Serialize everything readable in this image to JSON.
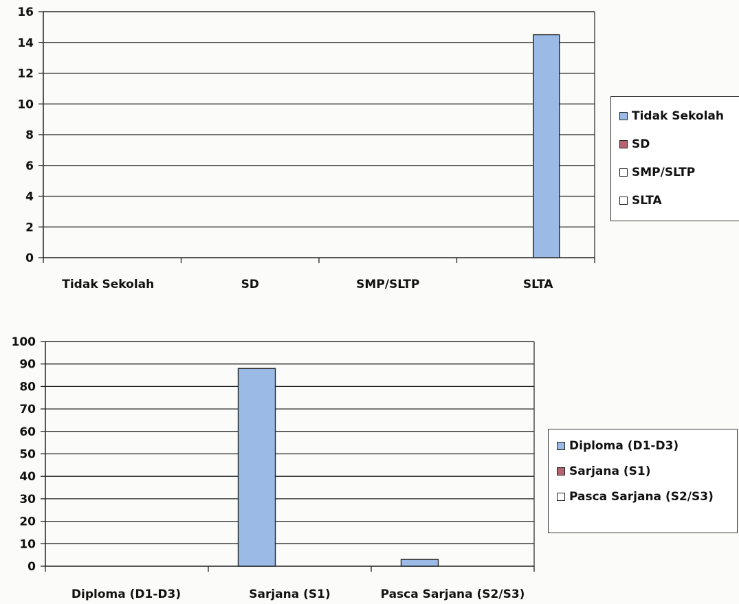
{
  "chart_data": [
    {
      "type": "bar",
      "categories": [
        "Tidak Sekolah",
        "SD",
        "SMP/SLTP",
        "SLTA"
      ],
      "series": [
        {
          "name": "Tidak Sekolah",
          "color": "#9bbbe6",
          "values": [
            0,
            0,
            0,
            14.5
          ]
        }
      ],
      "legend": [
        "Tidak Sekolah",
        "SD",
        "SMP/SLTP",
        "SLTA"
      ],
      "legend_colors": [
        "#9bbbe6",
        "#b5636f",
        "#ffffff",
        "#ffffff"
      ],
      "yticks": [
        0,
        2,
        4,
        6,
        8,
        10,
        12,
        14,
        16
      ],
      "ylim": [
        0,
        16
      ],
      "grid": true,
      "legend_position": "right"
    },
    {
      "type": "bar",
      "categories": [
        "Diploma (D1-D3)",
        "Sarjana (S1)",
        "Pasca Sarjana (S2/S3)"
      ],
      "series": [
        {
          "name": "Diploma (D1-D3)",
          "color": "#9bbbe6",
          "values": [
            0,
            88,
            3
          ]
        }
      ],
      "legend": [
        "Diploma (D1-D3)",
        "Sarjana (S1)",
        "Pasca Sarjana (S2/S3)"
      ],
      "legend_colors": [
        "#9bbbe6",
        "#b5636f",
        "#ffffff"
      ],
      "yticks": [
        0,
        10,
        20,
        30,
        40,
        50,
        60,
        70,
        80,
        90,
        100
      ],
      "ylim": [
        0,
        100
      ],
      "grid": true,
      "legend_position": "right"
    }
  ]
}
